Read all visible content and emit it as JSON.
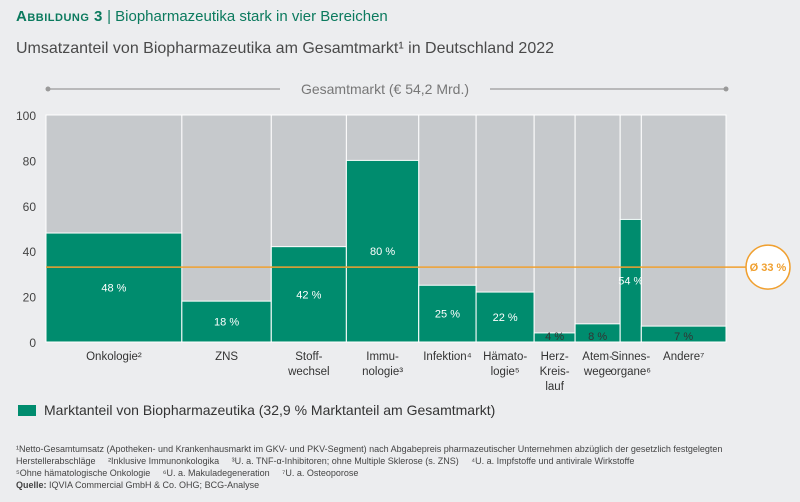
{
  "title_prefix": "Abbildung 3",
  "title": "Biopharmazeutika stark in vier Bereichen",
  "chart_data": {
    "type": "bar",
    "variant": "marimekko",
    "title": "Umsatzanteil von Biopharmazeutika am Gesamtmarkt¹ in Deutschland 2022",
    "bracket_label": "Gesamtmarkt (€ 54,2 Mrd.)",
    "categories": [
      "Onkologie²",
      "ZNS",
      "Stoff-\nwechsel",
      "Immu-\nnologie³",
      "Infektion⁴",
      "Hämato-\nlogie⁵",
      "Herz-\nKreis-\nlauf",
      "Atem-\nwege",
      "Sinnes-\norgane⁶",
      "Andere⁷"
    ],
    "market_share_pct_width": [
      19.9,
      13.1,
      11.0,
      10.6,
      8.4,
      8.5,
      6.0,
      6.6,
      3.1,
      12.4
    ],
    "values": [
      48,
      18,
      42,
      80,
      25,
      22,
      4,
      8,
      54,
      7
    ],
    "value_labels": [
      "48 %",
      "18 %",
      "42 %",
      "80 %",
      "25 %",
      "22 %",
      "4 %",
      "8 %",
      "54 %",
      "7 %"
    ],
    "ylim": [
      0,
      100
    ],
    "yticks": [
      0,
      20,
      40,
      60,
      80,
      100
    ],
    "average": 33,
    "average_label": "Ø 33 %",
    "legend": "Marktanteil von Biopharmazeutika (32,9 % Marktanteil am Gesamtmarkt)",
    "colors": {
      "bio": "#008c6e",
      "rest": "#c6c9cc",
      "average": "#f0a030"
    }
  },
  "footnotes": [
    "¹Netto-Gesamtumsatz (Apotheken- und Krankenhausmarkt im GKV- und PKV-Segment) nach Abgabepreis pharmazeutischer Unternehmen abzüglich der gesetzlich festgelegten Herstellerabschläge",
    "²Inklusive Immunonkologika",
    "³U. a. TNF-α-Inhibitoren; ohne Multiple Sklerose (s. ZNS)",
    "⁴U. a. Impfstoffe und antivirale Wirkstoffe",
    "⁵Ohne hämatologische Onkologie",
    "⁶U. a. Makuladegeneration",
    "⁷U. a. Osteoporose"
  ],
  "source_label": "Quelle:",
  "source": "IQVIA Commercial GmbH & Co. OHG; BCG-Analyse"
}
